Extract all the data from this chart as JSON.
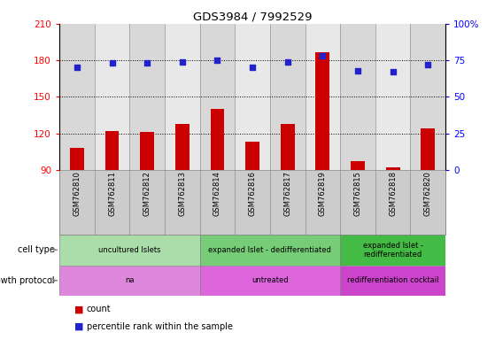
{
  "title": "GDS3984 / 7992529",
  "samples": [
    "GSM762810",
    "GSM762811",
    "GSM762812",
    "GSM762813",
    "GSM762814",
    "GSM762816",
    "GSM762817",
    "GSM762819",
    "GSM762815",
    "GSM762818",
    "GSM762820"
  ],
  "counts": [
    108,
    122,
    121,
    128,
    140,
    113,
    128,
    187,
    97,
    92,
    124
  ],
  "percentile_ranks": [
    70,
    73,
    73,
    74,
    75,
    70,
    74,
    78,
    68,
    67,
    72
  ],
  "ylim_left": [
    90,
    210
  ],
  "ylim_right": [
    0,
    100
  ],
  "yticks_left": [
    90,
    120,
    150,
    180,
    210
  ],
  "yticks_right": [
    0,
    25,
    50,
    75,
    100
  ],
  "bar_color": "#cc0000",
  "dot_color": "#2222cc",
  "cell_type_groups": [
    {
      "label": "uncultured Islets",
      "start": 0,
      "end": 4,
      "color": "#aaddaa"
    },
    {
      "label": "expanded Islet - dedifferentiated",
      "start": 4,
      "end": 8,
      "color": "#77cc77"
    },
    {
      "label": "expanded Islet -\nredifferentiated",
      "start": 8,
      "end": 11,
      "color": "#44bb44"
    }
  ],
  "growth_protocol_groups": [
    {
      "label": "na",
      "start": 0,
      "end": 4,
      "color": "#dd88dd"
    },
    {
      "label": "untreated",
      "start": 4,
      "end": 8,
      "color": "#dd66dd"
    },
    {
      "label": "redifferentiation cocktail",
      "start": 8,
      "end": 11,
      "color": "#cc44cc"
    }
  ],
  "col_bg_even": "#d8d8d8",
  "col_bg_odd": "#e8e8e8",
  "legend_count_color": "#cc0000",
  "legend_dot_color": "#2222cc",
  "cell_type_label": "cell type",
  "growth_protocol_label": "growth protocol"
}
